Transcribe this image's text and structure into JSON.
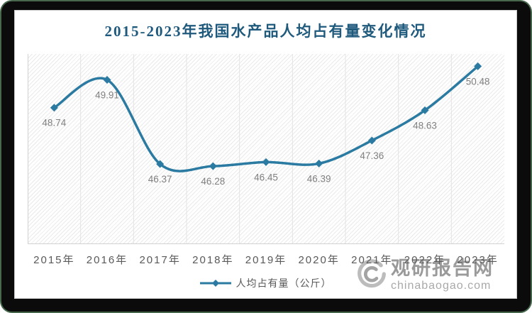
{
  "title": "2015-2023年我国水产品人均占有量变化情况",
  "chart_data": {
    "type": "line",
    "title": "2015-2023年我国水产品人均占有量变化情况",
    "categories": [
      "2015年",
      "2016年",
      "2017年",
      "2018年",
      "2019年",
      "2020年",
      "2021年",
      "2022年",
      "2023年"
    ],
    "series": [
      {
        "name": "人均占有量（公斤）",
        "values": [
          48.74,
          49.91,
          46.37,
          46.28,
          46.45,
          46.39,
          47.36,
          48.63,
          50.48
        ]
      }
    ],
    "xlabel": "",
    "ylabel": "",
    "ylim": [
      43,
      51
    ],
    "grid": "vertical-only",
    "legend_position": "bottom",
    "marker": "diamond",
    "smooth": true,
    "colors": {
      "line": "#2a7aa1",
      "title": "#1f5a7d",
      "data_label": "#7f7f7f",
      "axis_label": "#595959",
      "gridline": "#e3e3e3",
      "axis_line": "#d2d2d2"
    }
  },
  "legend": {
    "label": "人均占有量（公斤）"
  },
  "watermark": {
    "brand": "观研报告网",
    "domain": "chinabaogao.com",
    "logo": "swirl-eye-logo",
    "color": "#9c9c9c"
  }
}
